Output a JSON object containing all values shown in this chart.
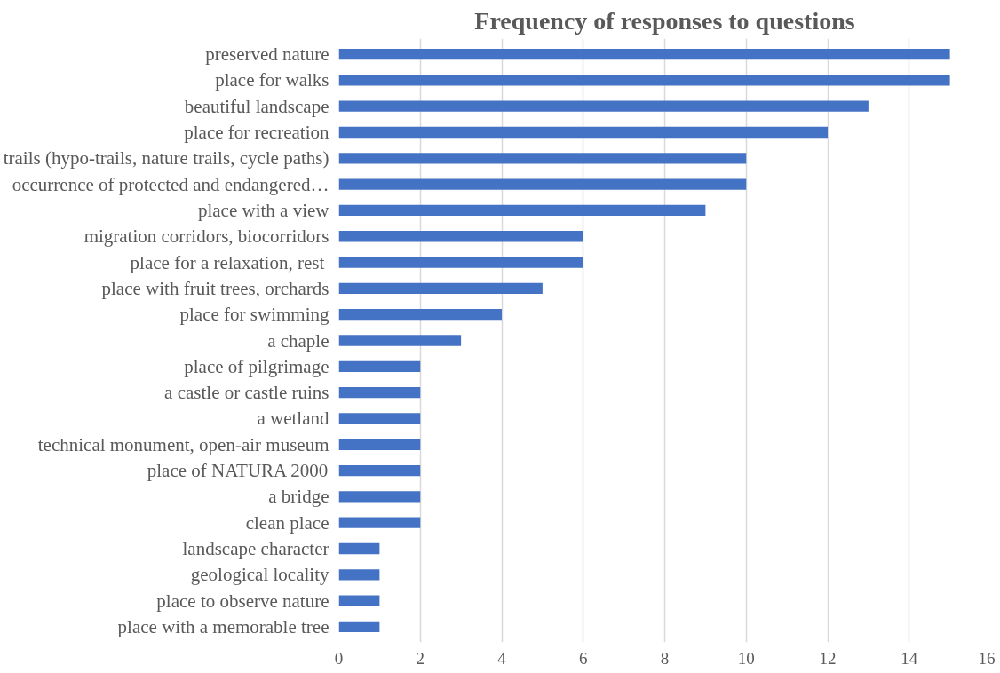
{
  "chart_data": {
    "type": "bar",
    "orientation": "horizontal",
    "title": "Frequency of responses to questions",
    "categories": [
      "preserved nature",
      "place for walks",
      "beautiful landscape",
      "place for recreation",
      "trails (hypo-trails, nature trails, cycle paths)",
      "occurrence of protected and endangered…",
      "place with a view",
      "migration corridors, biocorridors",
      "place for  a relaxation, rest",
      "place with fruit trees, orchards",
      "place for swimming",
      "a chaple",
      "place of pilgrimage",
      "a castle or castle ruins",
      "a wetland",
      "technical monument, open-air museum",
      "place of NATURA 2000",
      "a bridge",
      "clean place",
      "landscape character",
      "geological locality",
      "place to observe nature",
      "place with a memorable tree"
    ],
    "values": [
      15,
      15,
      13,
      12,
      10,
      10,
      9,
      6,
      6,
      5,
      4,
      3,
      2,
      2,
      2,
      2,
      2,
      2,
      2,
      1,
      1,
      1,
      1
    ],
    "color": "#4472c4",
    "xlim": [
      0,
      16
    ],
    "xticks": [
      0,
      2,
      4,
      6,
      8,
      10,
      12,
      14,
      16
    ],
    "grid": "x"
  }
}
